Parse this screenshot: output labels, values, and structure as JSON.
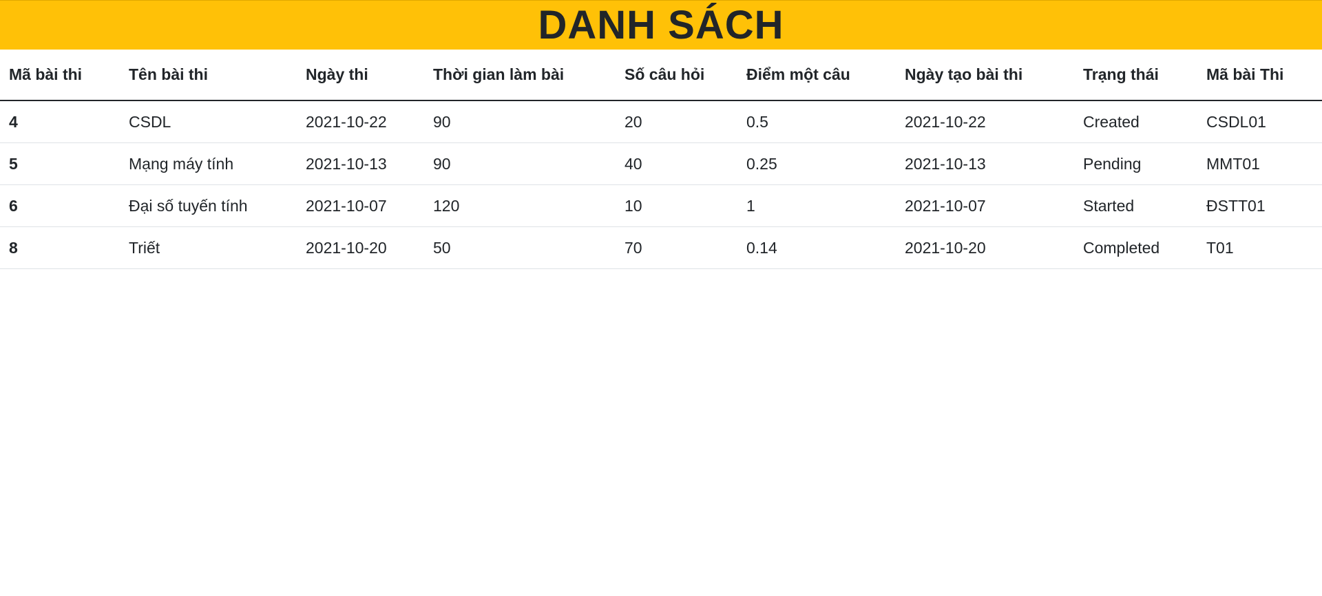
{
  "header": {
    "title": "DANH SÁCH"
  },
  "table": {
    "columns": [
      "Mã bài thi",
      "Tên bài thi",
      "Ngày thi",
      "Thời gian làm bài",
      "Số câu hỏi",
      "Điểm một câu",
      "Ngày tạo bài thi",
      "Trạng thái",
      "Mã bài Thi"
    ],
    "rows": [
      [
        "4",
        "CSDL",
        "2021-10-22",
        "90",
        "20",
        "0.5",
        "2021-10-22",
        "Created",
        "CSDL01"
      ],
      [
        "5",
        "Mạng máy tính",
        "2021-10-13",
        "90",
        "40",
        "0.25",
        "2021-10-13",
        "Pending",
        "MMT01"
      ],
      [
        "6",
        "Đại số tuyến tính",
        "2021-10-07",
        "120",
        "10",
        "1",
        "2021-10-07",
        "Started",
        "ĐSTT01"
      ],
      [
        "8",
        "Triết",
        "2021-10-20",
        "50",
        "70",
        "0.14",
        "2021-10-20",
        "Completed",
        "T01"
      ]
    ]
  }
}
